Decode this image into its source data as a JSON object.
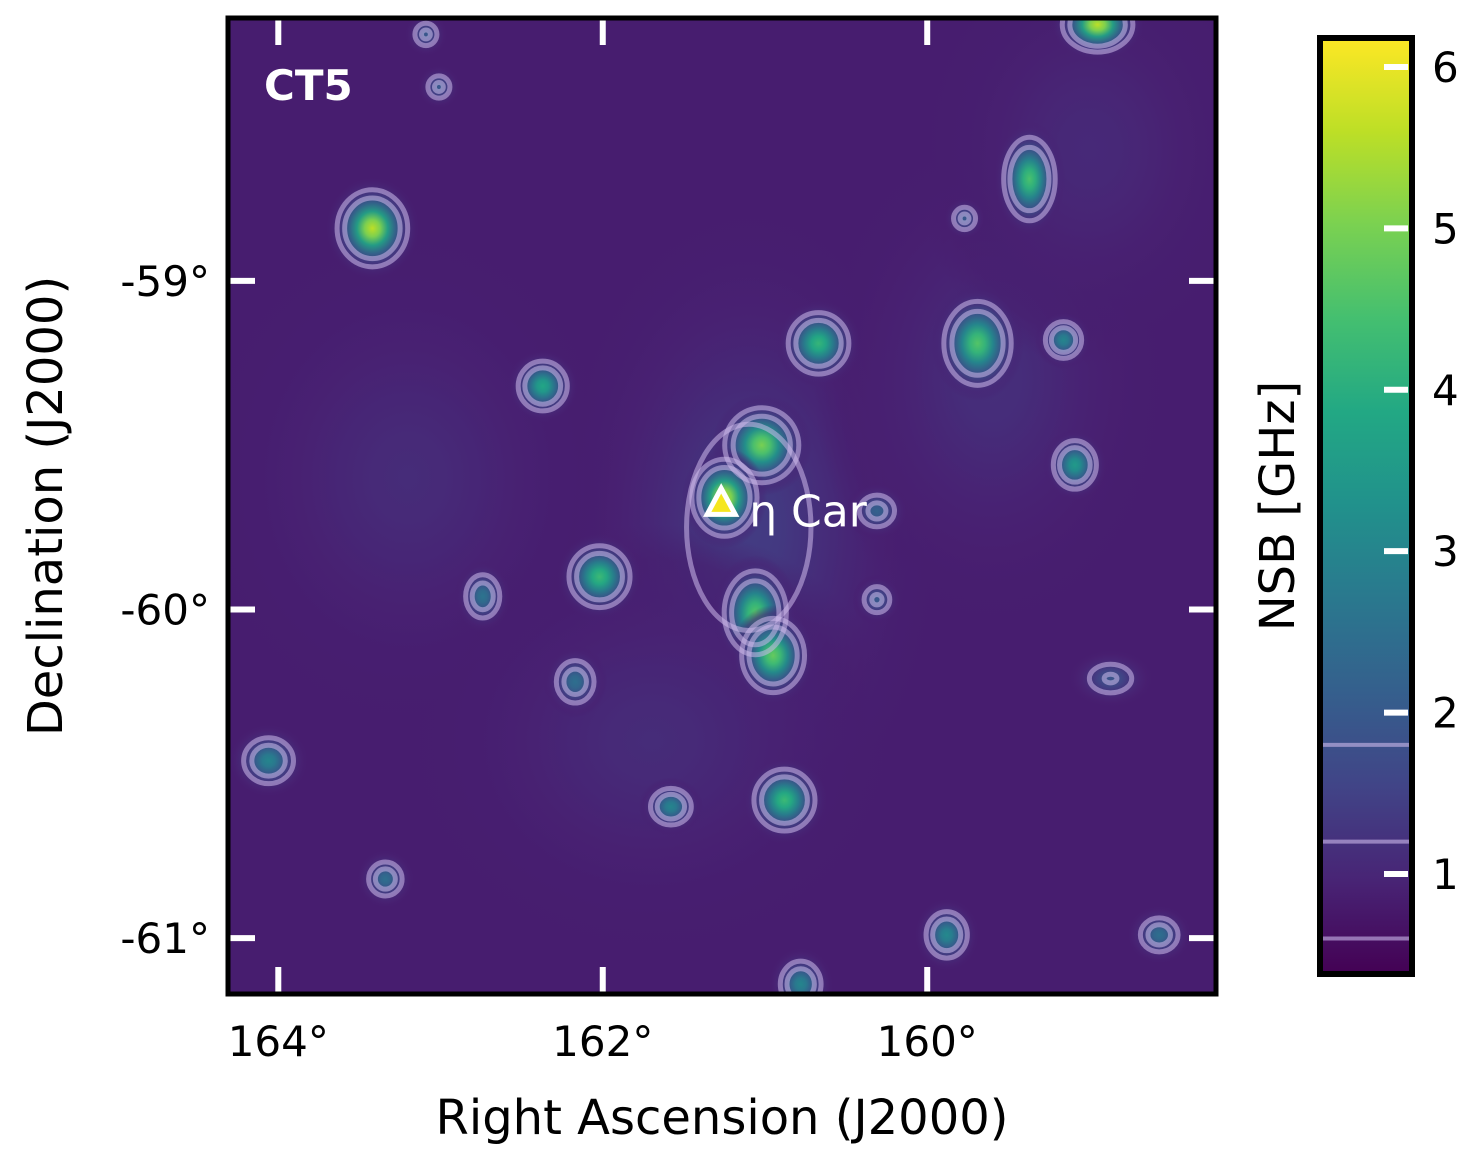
{
  "chart_data": {
    "type": "heatmap",
    "title": "CT5",
    "xlabel": "Right Ascension (J2000)",
    "ylabel": "Declination (J2000)",
    "xlim": [
      164.31,
      158.22
    ],
    "ylim": [
      -61.17,
      -58.2
    ],
    "xticks": [
      {
        "value": 164,
        "label": "164°"
      },
      {
        "value": 162,
        "label": "162°"
      },
      {
        "value": 160,
        "label": "160°"
      }
    ],
    "yticks": [
      {
        "value": -59,
        "label": "-59°"
      },
      {
        "value": -60,
        "label": "-60°"
      },
      {
        "value": -61,
        "label": "-61°"
      }
    ],
    "colorbar": {
      "label": "NSB [GHz]",
      "colormap": "viridis",
      "range": [
        0.38,
        6.18
      ],
      "ticks": [
        {
          "value": 1,
          "label": "1"
        },
        {
          "value": 2,
          "label": "2"
        },
        {
          "value": 3,
          "label": "3"
        },
        {
          "value": 4,
          "label": "4"
        },
        {
          "value": 5,
          "label": "5"
        },
        {
          "value": 6,
          "label": "6"
        }
      ]
    },
    "contour_levels": [
      0.6,
      1.2,
      1.8
    ],
    "background_level": 0.85,
    "annotation": {
      "label": "η Car",
      "ra": 161.27,
      "dec": -59.68,
      "marker": "triangle",
      "marker_color": "#ffffff"
    },
    "diffuse_regions": [
      {
        "ra": 161.1,
        "dec": -59.75,
        "sigma_ra": 0.55,
        "sigma_dec": 0.45,
        "peak": 1.4
      },
      {
        "ra": 163.2,
        "dec": -59.6,
        "sigma_ra": 0.6,
        "sigma_dec": 0.35,
        "peak": 1.1
      },
      {
        "ra": 159.6,
        "dec": -59.3,
        "sigma_ra": 0.5,
        "sigma_dec": 0.35,
        "peak": 1.15
      },
      {
        "ra": 161.7,
        "dec": -60.4,
        "sigma_ra": 0.7,
        "sigma_dec": 0.3,
        "peak": 1.1
      },
      {
        "ra": 159.0,
        "dec": -58.6,
        "sigma_ra": 0.5,
        "sigma_dec": 0.3,
        "peak": 1.05
      }
    ],
    "sources": [
      {
        "ra": 163.42,
        "dec": -58.84,
        "sigma_ra": 0.13,
        "sigma_dec": 0.07,
        "peak": 5.6
      },
      {
        "ra": 162.37,
        "dec": -59.32,
        "sigma_ra": 0.1,
        "sigma_dec": 0.05,
        "peak": 3.8
      },
      {
        "ra": 162.02,
        "dec": -59.9,
        "sigma_ra": 0.12,
        "sigma_dec": 0.06,
        "peak": 4.3
      },
      {
        "ra": 161.02,
        "dec": -59.5,
        "sigma_ra": 0.14,
        "sigma_dec": 0.07,
        "peak": 5.0
      },
      {
        "ra": 161.25,
        "dec": -59.66,
        "sigma_ra": 0.12,
        "sigma_dec": 0.07,
        "peak": 5.6
      },
      {
        "ra": 161.06,
        "dec": -60.01,
        "sigma_ra": 0.12,
        "sigma_dec": 0.08,
        "peak": 4.6
      },
      {
        "ra": 160.95,
        "dec": -60.14,
        "sigma_ra": 0.12,
        "sigma_dec": 0.07,
        "peak": 4.8
      },
      {
        "ra": 160.67,
        "dec": -59.19,
        "sigma_ra": 0.12,
        "sigma_dec": 0.06,
        "peak": 4.2
      },
      {
        "ra": 159.69,
        "dec": -59.19,
        "sigma_ra": 0.13,
        "sigma_dec": 0.08,
        "peak": 4.6
      },
      {
        "ra": 159.37,
        "dec": -58.69,
        "sigma_ra": 0.1,
        "sigma_dec": 0.08,
        "peak": 4.5
      },
      {
        "ra": 159.16,
        "dec": -59.18,
        "sigma_ra": 0.08,
        "sigma_dec": 0.04,
        "peak": 3.0
      },
      {
        "ra": 159.09,
        "dec": -59.56,
        "sigma_ra": 0.09,
        "sigma_dec": 0.05,
        "peak": 3.5
      },
      {
        "ra": 158.95,
        "dec": -58.22,
        "sigma_ra": 0.13,
        "sigma_dec": 0.05,
        "peak": 5.6
      },
      {
        "ra": 160.88,
        "dec": -60.58,
        "sigma_ra": 0.12,
        "sigma_dec": 0.06,
        "peak": 4.3
      },
      {
        "ra": 161.58,
        "dec": -60.6,
        "sigma_ra": 0.09,
        "sigma_dec": 0.04,
        "peak": 3.0
      },
      {
        "ra": 162.17,
        "dec": -60.22,
        "sigma_ra": 0.09,
        "sigma_dec": 0.05,
        "peak": 2.5
      },
      {
        "ra": 162.74,
        "dec": -59.96,
        "sigma_ra": 0.08,
        "sigma_dec": 0.05,
        "peak": 2.6
      },
      {
        "ra": 164.06,
        "dec": -60.46,
        "sigma_ra": 0.11,
        "sigma_dec": 0.05,
        "peak": 3.0
      },
      {
        "ra": 163.34,
        "dec": -60.82,
        "sigma_ra": 0.08,
        "sigma_dec": 0.04,
        "peak": 2.5
      },
      {
        "ra": 159.88,
        "dec": -60.99,
        "sigma_ra": 0.09,
        "sigma_dec": 0.05,
        "peak": 3.1
      },
      {
        "ra": 158.57,
        "dec": -60.99,
        "sigma_ra": 0.09,
        "sigma_dec": 0.04,
        "peak": 2.5
      },
      {
        "ra": 159.77,
        "dec": -58.81,
        "sigma_ra": 0.06,
        "sigma_dec": 0.03,
        "peak": 2.0
      },
      {
        "ra": 160.31,
        "dec": -59.7,
        "sigma_ra": 0.09,
        "sigma_dec": 0.04,
        "peak": 2.2
      },
      {
        "ra": 160.31,
        "dec": -59.97,
        "sigma_ra": 0.07,
        "sigma_dec": 0.035,
        "peak": 2.0
      },
      {
        "ra": 163.01,
        "dec": -58.41,
        "sigma_ra": 0.06,
        "sigma_dec": 0.03,
        "peak": 2.0
      },
      {
        "ra": 163.09,
        "dec": -58.25,
        "sigma_ra": 0.06,
        "sigma_dec": 0.03,
        "peak": 2.0
      },
      {
        "ra": 160.78,
        "dec": -61.14,
        "sigma_ra": 0.09,
        "sigma_dec": 0.05,
        "peak": 3.0
      },
      {
        "ra": 158.87,
        "dec": -60.21,
        "sigma_ra": 0.12,
        "sigma_dec": 0.04,
        "peak": 1.9
      }
    ]
  }
}
